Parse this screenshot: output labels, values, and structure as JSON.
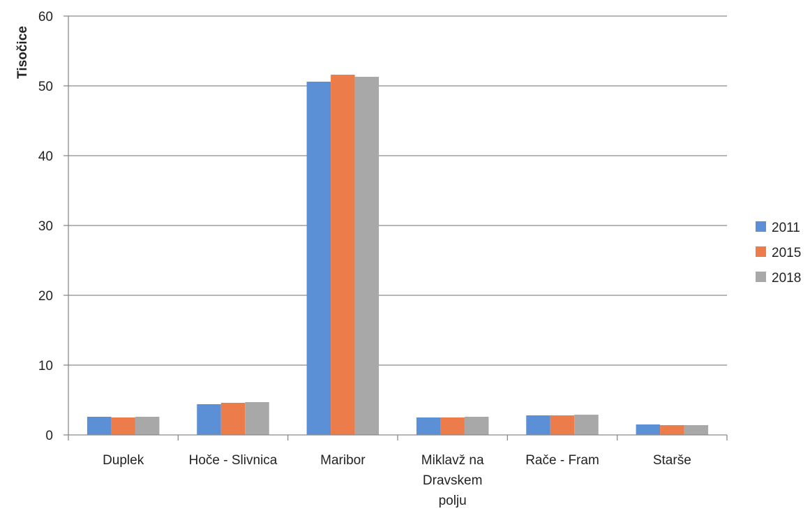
{
  "chart_data": {
    "type": "bar",
    "title": "",
    "xlabel": "",
    "ylabel": "Tisočice",
    "ylim": [
      0,
      60
    ],
    "yticks": [
      0,
      10,
      20,
      30,
      40,
      50,
      60
    ],
    "grid": true,
    "legend_position": "right",
    "categories": [
      [
        "Duplek"
      ],
      [
        "Hoče - Slivnica"
      ],
      [
        "Maribor"
      ],
      [
        "Miklavž na",
        "Dravskem",
        "polju"
      ],
      [
        "Rače - Fram"
      ],
      [
        "Starše"
      ]
    ],
    "series": [
      {
        "name": "2011",
        "color": "#5b8fd6",
        "values": [
          2.6,
          4.4,
          50.6,
          2.5,
          2.8,
          1.5
        ]
      },
      {
        "name": "2015",
        "color": "#ec7c4a",
        "values": [
          2.5,
          4.6,
          51.6,
          2.5,
          2.8,
          1.4
        ]
      },
      {
        "name": "2018",
        "color": "#a8a8a8",
        "values": [
          2.6,
          4.7,
          51.3,
          2.6,
          2.9,
          1.4
        ]
      }
    ]
  }
}
